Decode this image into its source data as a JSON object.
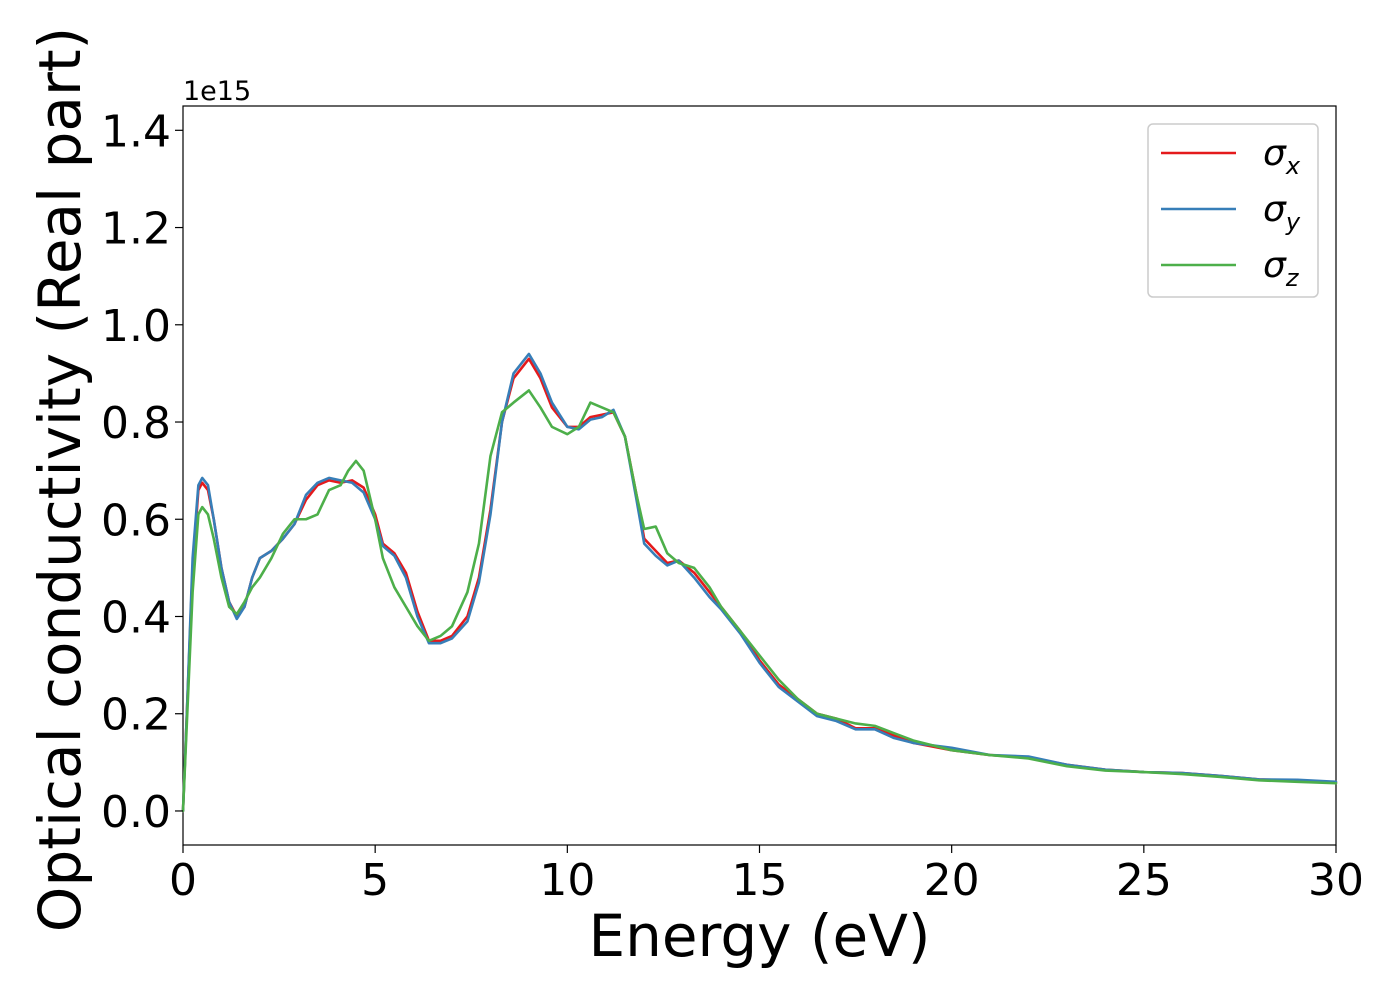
{
  "chart_data": {
    "type": "line",
    "title": "",
    "xlabel": "Energy (eV)",
    "ylabel": "Optical conductivity (Real part)",
    "y_offset_label": "1e15",
    "xlim": [
      0,
      30
    ],
    "ylim": [
      -0.07,
      1.45
    ],
    "xticks": [
      0,
      5,
      10,
      15,
      20,
      25,
      30
    ],
    "xtick_labels": [
      "0",
      "5",
      "10",
      "15",
      "20",
      "25",
      "30"
    ],
    "yticks": [
      0.0,
      0.2,
      0.4,
      0.6,
      0.8,
      1.0,
      1.2,
      1.4
    ],
    "ytick_labels": [
      "0.0",
      "0.2",
      "0.4",
      "0.6",
      "0.8",
      "1.0",
      "1.2",
      "1.4"
    ],
    "grid": false,
    "legend_position": "top-right",
    "series": [
      {
        "name": "σx",
        "symbol": "σ",
        "subscript": "x",
        "color": "#e41a1c",
        "points": [
          [
            0,
            0
          ],
          [
            0.1,
            0.2
          ],
          [
            0.25,
            0.5
          ],
          [
            0.4,
            0.66
          ],
          [
            0.5,
            0.675
          ],
          [
            0.65,
            0.66
          ],
          [
            0.8,
            0.6
          ],
          [
            1.0,
            0.5
          ],
          [
            1.2,
            0.43
          ],
          [
            1.4,
            0.4
          ],
          [
            1.6,
            0.42
          ],
          [
            1.8,
            0.48
          ],
          [
            2.0,
            0.52
          ],
          [
            2.3,
            0.535
          ],
          [
            2.6,
            0.56
          ],
          [
            2.9,
            0.59
          ],
          [
            3.2,
            0.64
          ],
          [
            3.5,
            0.67
          ],
          [
            3.8,
            0.68
          ],
          [
            4.1,
            0.675
          ],
          [
            4.4,
            0.68
          ],
          [
            4.7,
            0.665
          ],
          [
            5.0,
            0.61
          ],
          [
            5.2,
            0.55
          ],
          [
            5.5,
            0.53
          ],
          [
            5.8,
            0.49
          ],
          [
            6.1,
            0.41
          ],
          [
            6.4,
            0.35
          ],
          [
            6.7,
            0.35
          ],
          [
            7.0,
            0.36
          ],
          [
            7.4,
            0.4
          ],
          [
            7.7,
            0.48
          ],
          [
            8.0,
            0.62
          ],
          [
            8.3,
            0.8
          ],
          [
            8.6,
            0.89
          ],
          [
            9.0,
            0.93
          ],
          [
            9.3,
            0.89
          ],
          [
            9.6,
            0.83
          ],
          [
            10.0,
            0.79
          ],
          [
            10.3,
            0.79
          ],
          [
            10.6,
            0.81
          ],
          [
            10.9,
            0.815
          ],
          [
            11.2,
            0.82
          ],
          [
            11.5,
            0.77
          ],
          [
            11.8,
            0.65
          ],
          [
            12.0,
            0.56
          ],
          [
            12.3,
            0.535
          ],
          [
            12.6,
            0.51
          ],
          [
            12.9,
            0.515
          ],
          [
            13.3,
            0.49
          ],
          [
            13.7,
            0.45
          ],
          [
            14.0,
            0.42
          ],
          [
            14.5,
            0.37
          ],
          [
            15.0,
            0.31
          ],
          [
            15.5,
            0.26
          ],
          [
            16.0,
            0.23
          ],
          [
            16.5,
            0.2
          ],
          [
            17.0,
            0.19
          ],
          [
            17.5,
            0.17
          ],
          [
            18.0,
            0.17
          ],
          [
            18.5,
            0.155
          ],
          [
            19.0,
            0.14
          ],
          [
            20.0,
            0.125
          ],
          [
            21.0,
            0.115
          ],
          [
            22.0,
            0.11
          ],
          [
            23.0,
            0.095
          ],
          [
            24.0,
            0.085
          ],
          [
            25.0,
            0.08
          ],
          [
            26.0,
            0.078
          ],
          [
            27.0,
            0.072
          ],
          [
            28.0,
            0.065
          ],
          [
            29.0,
            0.062
          ],
          [
            30.0,
            0.058
          ]
        ]
      },
      {
        "name": "σy",
        "symbol": "σ",
        "subscript": "y",
        "color": "#377eb8",
        "points": [
          [
            0,
            0
          ],
          [
            0.1,
            0.2
          ],
          [
            0.25,
            0.52
          ],
          [
            0.4,
            0.67
          ],
          [
            0.5,
            0.685
          ],
          [
            0.65,
            0.67
          ],
          [
            0.8,
            0.6
          ],
          [
            1.0,
            0.5
          ],
          [
            1.2,
            0.43
          ],
          [
            1.4,
            0.395
          ],
          [
            1.6,
            0.42
          ],
          [
            1.8,
            0.48
          ],
          [
            2.0,
            0.52
          ],
          [
            2.3,
            0.535
          ],
          [
            2.6,
            0.56
          ],
          [
            2.9,
            0.59
          ],
          [
            3.2,
            0.65
          ],
          [
            3.5,
            0.675
          ],
          [
            3.8,
            0.685
          ],
          [
            4.1,
            0.68
          ],
          [
            4.4,
            0.675
          ],
          [
            4.7,
            0.655
          ],
          [
            5.0,
            0.6
          ],
          [
            5.2,
            0.545
          ],
          [
            5.5,
            0.525
          ],
          [
            5.8,
            0.48
          ],
          [
            6.1,
            0.4
          ],
          [
            6.4,
            0.345
          ],
          [
            6.7,
            0.345
          ],
          [
            7.0,
            0.355
          ],
          [
            7.4,
            0.39
          ],
          [
            7.7,
            0.47
          ],
          [
            8.0,
            0.61
          ],
          [
            8.3,
            0.8
          ],
          [
            8.6,
            0.9
          ],
          [
            9.0,
            0.94
          ],
          [
            9.3,
            0.9
          ],
          [
            9.6,
            0.84
          ],
          [
            10.0,
            0.79
          ],
          [
            10.3,
            0.785
          ],
          [
            10.6,
            0.805
          ],
          [
            10.9,
            0.81
          ],
          [
            11.2,
            0.825
          ],
          [
            11.5,
            0.77
          ],
          [
            11.8,
            0.64
          ],
          [
            12.0,
            0.55
          ],
          [
            12.3,
            0.525
          ],
          [
            12.6,
            0.505
          ],
          [
            12.9,
            0.515
          ],
          [
            13.3,
            0.48
          ],
          [
            13.7,
            0.44
          ],
          [
            14.0,
            0.415
          ],
          [
            14.5,
            0.365
          ],
          [
            15.0,
            0.305
          ],
          [
            15.5,
            0.255
          ],
          [
            16.0,
            0.225
          ],
          [
            16.5,
            0.195
          ],
          [
            17.0,
            0.185
          ],
          [
            17.5,
            0.168
          ],
          [
            18.0,
            0.168
          ],
          [
            18.5,
            0.15
          ],
          [
            19.0,
            0.14
          ],
          [
            20.0,
            0.13
          ],
          [
            21.0,
            0.115
          ],
          [
            22.0,
            0.112
          ],
          [
            23.0,
            0.095
          ],
          [
            24.0,
            0.085
          ],
          [
            25.0,
            0.08
          ],
          [
            26.0,
            0.078
          ],
          [
            27.0,
            0.072
          ],
          [
            28.0,
            0.065
          ],
          [
            29.0,
            0.064
          ],
          [
            30.0,
            0.06
          ]
        ]
      },
      {
        "name": "σz",
        "symbol": "σ",
        "subscript": "z",
        "color": "#4daf4a",
        "points": [
          [
            0,
            0
          ],
          [
            0.1,
            0.18
          ],
          [
            0.25,
            0.45
          ],
          [
            0.4,
            0.61
          ],
          [
            0.5,
            0.625
          ],
          [
            0.65,
            0.61
          ],
          [
            0.8,
            0.56
          ],
          [
            1.0,
            0.48
          ],
          [
            1.2,
            0.42
          ],
          [
            1.4,
            0.405
          ],
          [
            1.6,
            0.43
          ],
          [
            1.8,
            0.46
          ],
          [
            2.0,
            0.48
          ],
          [
            2.3,
            0.52
          ],
          [
            2.6,
            0.57
          ],
          [
            2.9,
            0.6
          ],
          [
            3.2,
            0.6
          ],
          [
            3.5,
            0.61
          ],
          [
            3.8,
            0.66
          ],
          [
            4.1,
            0.67
          ],
          [
            4.3,
            0.7
          ],
          [
            4.5,
            0.72
          ],
          [
            4.7,
            0.7
          ],
          [
            5.0,
            0.6
          ],
          [
            5.2,
            0.52
          ],
          [
            5.5,
            0.46
          ],
          [
            5.8,
            0.42
          ],
          [
            6.1,
            0.38
          ],
          [
            6.4,
            0.35
          ],
          [
            6.7,
            0.36
          ],
          [
            7.0,
            0.38
          ],
          [
            7.4,
            0.45
          ],
          [
            7.7,
            0.55
          ],
          [
            8.0,
            0.73
          ],
          [
            8.3,
            0.82
          ],
          [
            8.6,
            0.84
          ],
          [
            9.0,
            0.865
          ],
          [
            9.3,
            0.83
          ],
          [
            9.6,
            0.79
          ],
          [
            10.0,
            0.775
          ],
          [
            10.3,
            0.79
          ],
          [
            10.6,
            0.84
          ],
          [
            10.9,
            0.83
          ],
          [
            11.2,
            0.82
          ],
          [
            11.5,
            0.77
          ],
          [
            11.8,
            0.65
          ],
          [
            12.0,
            0.58
          ],
          [
            12.3,
            0.585
          ],
          [
            12.6,
            0.53
          ],
          [
            12.9,
            0.51
          ],
          [
            13.3,
            0.5
          ],
          [
            13.7,
            0.46
          ],
          [
            14.0,
            0.42
          ],
          [
            14.5,
            0.37
          ],
          [
            15.0,
            0.32
          ],
          [
            15.5,
            0.27
          ],
          [
            16.0,
            0.23
          ],
          [
            16.5,
            0.2
          ],
          [
            17.0,
            0.19
          ],
          [
            17.5,
            0.18
          ],
          [
            18.0,
            0.175
          ],
          [
            18.5,
            0.16
          ],
          [
            19.0,
            0.145
          ],
          [
            20.0,
            0.125
          ],
          [
            21.0,
            0.115
          ],
          [
            22.0,
            0.108
          ],
          [
            23.0,
            0.092
          ],
          [
            24.0,
            0.083
          ],
          [
            25.0,
            0.08
          ],
          [
            26.0,
            0.076
          ],
          [
            27.0,
            0.07
          ],
          [
            28.0,
            0.063
          ],
          [
            29.0,
            0.06
          ],
          [
            30.0,
            0.057
          ]
        ]
      }
    ]
  }
}
